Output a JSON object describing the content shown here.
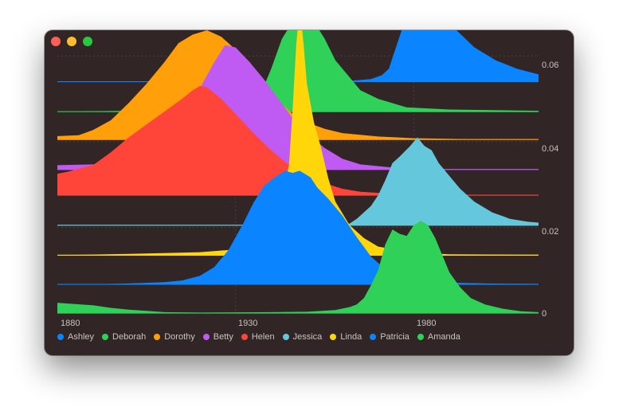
{
  "window": {
    "buttons": [
      "close",
      "minimize",
      "zoom"
    ]
  },
  "chart_data": {
    "type": "area",
    "layout": "ridgeline",
    "x_ticks": [
      "1880",
      "1930",
      "1980"
    ],
    "y_ticks": [
      "0.06",
      "0.04",
      "0.02",
      "0"
    ],
    "xlim": [
      1880,
      2015
    ],
    "ylim": [
      0,
      0.066
    ],
    "grid": true,
    "legend_position": "bottom-left",
    "series": [
      {
        "name": "Ashley",
        "color": "#0a84ff",
        "baseline": 0.054,
        "points": [
          [
            1955,
            0
          ],
          [
            1962,
            0.0002
          ],
          [
            1968,
            0.0006
          ],
          [
            1971,
            0.0015
          ],
          [
            1973,
            0.003
          ],
          [
            1975,
            0.008
          ],
          [
            1977,
            0.013
          ],
          [
            1979,
            0.016
          ],
          [
            1981,
            0.02
          ],
          [
            1983,
            0.02
          ],
          [
            1985,
            0.018
          ],
          [
            1988,
            0.016
          ],
          [
            1992,
            0.012
          ],
          [
            1997,
            0.008
          ],
          [
            2003,
            0.005
          ],
          [
            2009,
            0.003
          ],
          [
            2015,
            0.0017
          ]
        ]
      },
      {
        "name": "Deborah",
        "color": "#30d158",
        "baseline": 0.047,
        "points": [
          [
            1880,
            0
          ],
          [
            1900,
            0.0002
          ],
          [
            1920,
            0.0005
          ],
          [
            1932,
            0.001
          ],
          [
            1937,
            0.004
          ],
          [
            1940,
            0.01
          ],
          [
            1943,
            0.017
          ],
          [
            1946,
            0.021
          ],
          [
            1949,
            0.022
          ],
          [
            1952,
            0.021
          ],
          [
            1955,
            0.017
          ],
          [
            1958,
            0.012
          ],
          [
            1961,
            0.009
          ],
          [
            1965,
            0.005
          ],
          [
            1970,
            0.003
          ],
          [
            1978,
            0.001
          ],
          [
            1990,
            0.0005
          ],
          [
            2015,
            0.0002
          ]
        ]
      },
      {
        "name": "Dorothy",
        "color": "#ff9f0a",
        "baseline": 0.0405,
        "points": [
          [
            1880,
            0.0008
          ],
          [
            1886,
            0.001
          ],
          [
            1890,
            0.0022
          ],
          [
            1895,
            0.0045
          ],
          [
            1900,
            0.0085
          ],
          [
            1905,
            0.013
          ],
          [
            1910,
            0.018
          ],
          [
            1914,
            0.0225
          ],
          [
            1918,
            0.0245
          ],
          [
            1922,
            0.0255
          ],
          [
            1926,
            0.024
          ],
          [
            1930,
            0.021
          ],
          [
            1934,
            0.017
          ],
          [
            1938,
            0.013
          ],
          [
            1942,
            0.009
          ],
          [
            1946,
            0.006
          ],
          [
            1950,
            0.004
          ],
          [
            1955,
            0.0025
          ],
          [
            1960,
            0.0015
          ],
          [
            1970,
            0.0007
          ],
          [
            1980,
            0.0003
          ],
          [
            1995,
            0.0001
          ],
          [
            2015,
            0.0001
          ]
        ]
      },
      {
        "name": "Betty",
        "color": "#bf5af2",
        "baseline": 0.0335,
        "points": [
          [
            1880,
            0.001
          ],
          [
            1890,
            0.0012
          ],
          [
            1900,
            0.002
          ],
          [
            1905,
            0.003
          ],
          [
            1910,
            0.006
          ],
          [
            1915,
            0.012
          ],
          [
            1920,
            0.019
          ],
          [
            1924,
            0.025
          ],
          [
            1927,
            0.029
          ],
          [
            1930,
            0.0285
          ],
          [
            1934,
            0.025
          ],
          [
            1938,
            0.021
          ],
          [
            1942,
            0.0165
          ],
          [
            1946,
            0.012
          ],
          [
            1950,
            0.0085
          ],
          [
            1955,
            0.005
          ],
          [
            1960,
            0.0025
          ],
          [
            1965,
            0.0012
          ],
          [
            1975,
            0.0004
          ],
          [
            1990,
            0.0001
          ],
          [
            2015,
            0.0001
          ]
        ]
      },
      {
        "name": "Helen",
        "color": "#ff453a",
        "baseline": 0.0275,
        "points": [
          [
            1880,
            0.005
          ],
          [
            1883,
            0.0055
          ],
          [
            1886,
            0.0062
          ],
          [
            1890,
            0.007
          ],
          [
            1895,
            0.01
          ],
          [
            1900,
            0.0135
          ],
          [
            1905,
            0.0165
          ],
          [
            1910,
            0.0195
          ],
          [
            1915,
            0.0225
          ],
          [
            1918,
            0.0245
          ],
          [
            1920,
            0.0255
          ],
          [
            1922,
            0.0252
          ],
          [
            1926,
            0.0225
          ],
          [
            1930,
            0.019
          ],
          [
            1935,
            0.0145
          ],
          [
            1940,
            0.0105
          ],
          [
            1945,
            0.007
          ],
          [
            1950,
            0.0045
          ],
          [
            1955,
            0.0028
          ],
          [
            1960,
            0.0015
          ],
          [
            1965,
            0.0008
          ],
          [
            1975,
            0.0003
          ],
          [
            1990,
            0.0001
          ],
          [
            2015,
            0.0001
          ]
        ]
      },
      {
        "name": "Jessica",
        "color": "#64c7dc",
        "baseline": 0.0205,
        "points": [
          [
            1960,
            0
          ],
          [
            1962,
            0.0004
          ],
          [
            1964,
            0.0015
          ],
          [
            1966,
            0.003
          ],
          [
            1968,
            0.0045
          ],
          [
            1970,
            0.007
          ],
          [
            1972,
            0.0105
          ],
          [
            1974,
            0.0145
          ],
          [
            1976,
            0.016
          ],
          [
            1979,
            0.0185
          ],
          [
            1981,
            0.0205
          ],
          [
            1983,
            0.0185
          ],
          [
            1985,
            0.0175
          ],
          [
            1987,
            0.0145
          ],
          [
            1990,
            0.0115
          ],
          [
            1993,
            0.0085
          ],
          [
            1997,
            0.0055
          ],
          [
            2002,
            0.003
          ],
          [
            2007,
            0.0015
          ],
          [
            2012,
            0.0008
          ],
          [
            2015,
            0.0006
          ]
        ]
      },
      {
        "name": "Linda",
        "color": "#ffd60a",
        "baseline": 0.0135,
        "points": [
          [
            1880,
            0
          ],
          [
            1900,
            0.0003
          ],
          [
            1920,
            0.0007
          ],
          [
            1928,
            0.0012
          ],
          [
            1932,
            0.002
          ],
          [
            1936,
            0.004
          ],
          [
            1940,
            0.009
          ],
          [
            1943,
            0.014
          ],
          [
            1945,
            0.021
          ],
          [
            1946,
            0.034
          ],
          [
            1947,
            0.049
          ],
          [
            1948,
            0.058
          ],
          [
            1949,
            0.05
          ],
          [
            1950,
            0.04
          ],
          [
            1952,
            0.031
          ],
          [
            1954,
            0.025
          ],
          [
            1956,
            0.018
          ],
          [
            1958,
            0.0125
          ],
          [
            1962,
            0.007
          ],
          [
            1966,
            0.004
          ],
          [
            1970,
            0.002
          ],
          [
            1980,
            0.0006
          ],
          [
            1990,
            0.0002
          ],
          [
            2015,
            0.0001
          ]
        ]
      },
      {
        "name": "Patricia",
        "color": "#0a84ff",
        "baseline": 0.0067,
        "points": [
          [
            1889,
            0
          ],
          [
            1900,
            0.0002
          ],
          [
            1910,
            0.0005
          ],
          [
            1915,
            0.0009
          ],
          [
            1920,
            0.002
          ],
          [
            1924,
            0.004
          ],
          [
            1928,
            0.008
          ],
          [
            1932,
            0.014
          ],
          [
            1935,
            0.019
          ],
          [
            1938,
            0.023
          ],
          [
            1941,
            0.025
          ],
          [
            1944,
            0.0265
          ],
          [
            1946,
            0.026
          ],
          [
            1948,
            0.0265
          ],
          [
            1951,
            0.025
          ],
          [
            1953,
            0.0225
          ],
          [
            1956,
            0.02
          ],
          [
            1960,
            0.016
          ],
          [
            1964,
            0.011
          ],
          [
            1968,
            0.0065
          ],
          [
            1972,
            0.0035
          ],
          [
            1977,
            0.0015
          ],
          [
            1985,
            0.0005
          ],
          [
            2000,
            0.0002
          ],
          [
            2015,
            0.0001
          ]
        ]
      },
      {
        "name": "Amanda",
        "color": "#30d158",
        "baseline": 0,
        "points": [
          [
            1880,
            0.0024
          ],
          [
            1885,
            0.0021
          ],
          [
            1890,
            0.0018
          ],
          [
            1895,
            0.0012
          ],
          [
            1900,
            0.0008
          ],
          [
            1905,
            0.0005
          ],
          [
            1910,
            0.0002
          ],
          [
            1920,
            0.0001
          ],
          [
            1940,
            0.0002
          ],
          [
            1950,
            0.0003
          ],
          [
            1958,
            0.0007
          ],
          [
            1962,
            0.0014
          ],
          [
            1964,
            0.002
          ],
          [
            1966,
            0.0035
          ],
          [
            1968,
            0.0065
          ],
          [
            1970,
            0.01
          ],
          [
            1972,
            0.016
          ],
          [
            1974,
            0.0195
          ],
          [
            1976,
            0.0185
          ],
          [
            1978,
            0.018
          ],
          [
            1980,
            0.0205
          ],
          [
            1982,
            0.0215
          ],
          [
            1984,
            0.0205
          ],
          [
            1986,
            0.0175
          ],
          [
            1988,
            0.0135
          ],
          [
            1990,
            0.0095
          ],
          [
            1993,
            0.006
          ],
          [
            1996,
            0.0035
          ],
          [
            2000,
            0.002
          ],
          [
            2005,
            0.001
          ],
          [
            2010,
            0.0004
          ],
          [
            2015,
            0.0002
          ]
        ]
      }
    ]
  }
}
